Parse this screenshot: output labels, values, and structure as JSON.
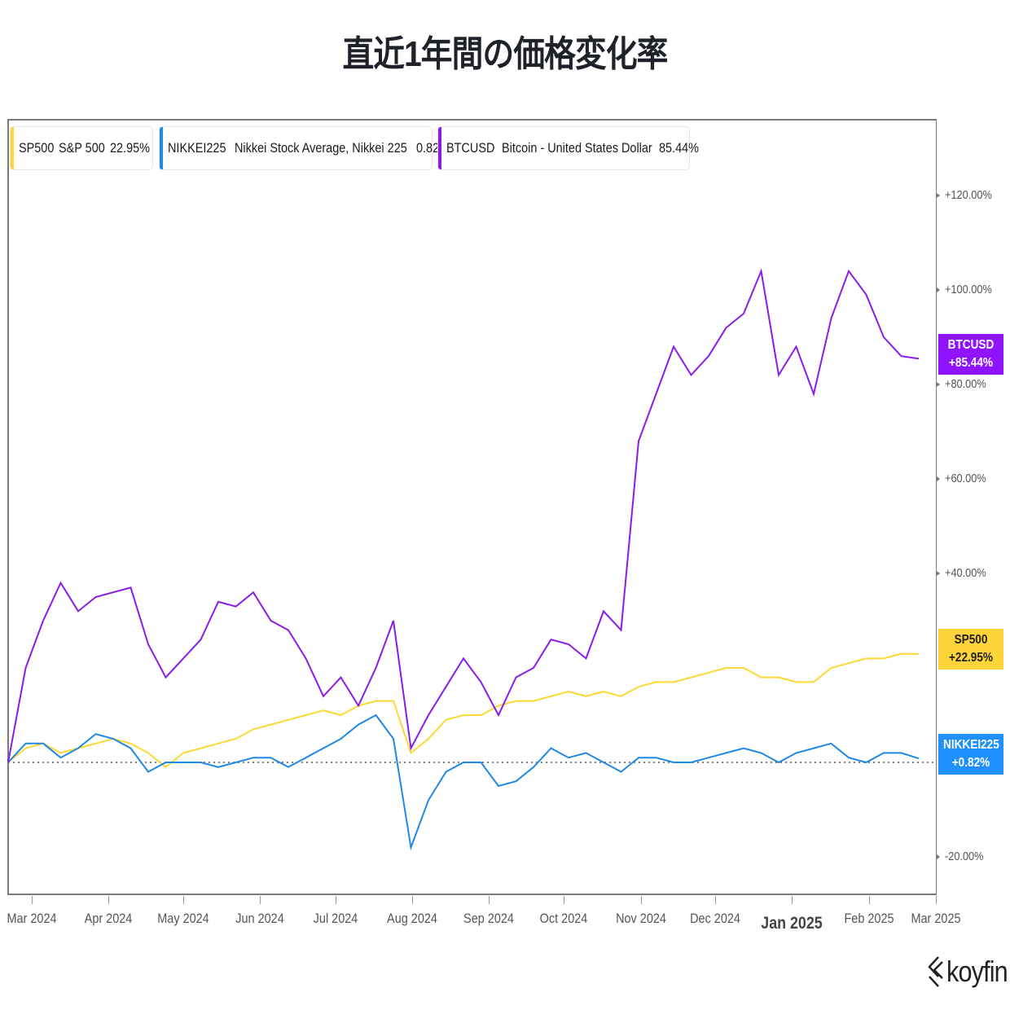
{
  "title": "直近1年間の価格変化率",
  "legend": [
    {
      "ticker": "SP500",
      "name": "S&P 500",
      "change": "22.95%",
      "color": "#fdd835"
    },
    {
      "ticker": "NIKKEI225",
      "name": "Nikkei Stock Average, Nikkei 225",
      "change": "0.82%",
      "color": "#1e88e5"
    },
    {
      "ticker": "BTCUSD",
      "name": "Bitcoin - United States Dollar",
      "change": "85.44%",
      "color": "#8a1be8"
    }
  ],
  "badges": {
    "btc": {
      "ticker": "BTCUSD",
      "value": "+85.44%",
      "bg": "#9013fe",
      "fg": "#ffffff"
    },
    "sp500": {
      "ticker": "SP500",
      "value": "+22.95%",
      "bg": "#fdd53a",
      "fg": "#222222"
    },
    "nikkei": {
      "ticker": "NIKKEI225",
      "value": "+0.82%",
      "bg": "#1e90ff",
      "fg": "#ffffff"
    }
  },
  "y_axis": {
    "ticks": [
      "+120.00%",
      "+100.00%",
      "+80.00%",
      "+60.00%",
      "+40.00%",
      "-20.00%"
    ]
  },
  "x_axis": {
    "ticks": [
      "Mar 2024",
      "Apr 2024",
      "May 2024",
      "Jun 2024",
      "Jul 2024",
      "Aug 2024",
      "Sep 2024",
      "Oct 2024",
      "Nov 2024",
      "Dec 2024",
      "Jan 2025",
      "Feb 2025",
      "Mar 2025"
    ]
  },
  "logo": "koyfin",
  "chart_data": {
    "type": "line",
    "title": "直近1年間の価格変化率",
    "xlabel": "",
    "ylabel": "",
    "ylim": [
      -28,
      138
    ],
    "grid": false,
    "legend_position": "top-left",
    "baseline": 0,
    "x": [
      "2024-02-26",
      "2024-03-04",
      "2024-03-11",
      "2024-03-18",
      "2024-03-25",
      "2024-04-01",
      "2024-04-08",
      "2024-04-15",
      "2024-04-22",
      "2024-04-29",
      "2024-05-06",
      "2024-05-13",
      "2024-05-20",
      "2024-05-27",
      "2024-06-03",
      "2024-06-10",
      "2024-06-17",
      "2024-06-24",
      "2024-07-01",
      "2024-07-08",
      "2024-07-15",
      "2024-07-22",
      "2024-07-29",
      "2024-08-05",
      "2024-08-12",
      "2024-08-19",
      "2024-08-26",
      "2024-09-02",
      "2024-09-09",
      "2024-09-16",
      "2024-09-23",
      "2024-09-30",
      "2024-10-07",
      "2024-10-14",
      "2024-10-21",
      "2024-10-28",
      "2024-11-04",
      "2024-11-11",
      "2024-11-18",
      "2024-11-25",
      "2024-12-02",
      "2024-12-09",
      "2024-12-16",
      "2024-12-23",
      "2024-12-30",
      "2025-01-06",
      "2025-01-13",
      "2025-01-20",
      "2025-01-27",
      "2025-02-03",
      "2025-02-10",
      "2025-02-17",
      "2025-02-24"
    ],
    "series": [
      {
        "name": "SP500",
        "color": "#fdd835",
        "final": 22.95,
        "values": [
          0,
          3,
          4,
          2,
          3,
          4,
          5,
          4,
          2,
          -1,
          2,
          3,
          4,
          5,
          7,
          8,
          9,
          10,
          11,
          10,
          12,
          13,
          13,
          2,
          5,
          9,
          10,
          10,
          12,
          13,
          13,
          14,
          15,
          14,
          15,
          14,
          16,
          17,
          17,
          18,
          19,
          20,
          20,
          18,
          18,
          17,
          17,
          20,
          21,
          22,
          22,
          23,
          22.95
        ]
      },
      {
        "name": "NIKKEI225",
        "color": "#1e88e5",
        "final": 0.82,
        "values": [
          0,
          4,
          4,
          1,
          3,
          6,
          5,
          3,
          -2,
          0,
          0,
          0,
          -1,
          0,
          1,
          1,
          -1,
          1,
          3,
          5,
          8,
          10,
          5,
          -18,
          -8,
          -2,
          0,
          0,
          -5,
          -4,
          -1,
          3,
          1,
          2,
          0,
          -2,
          1,
          1,
          0,
          0,
          1,
          2,
          3,
          2,
          0,
          2,
          3,
          4,
          1,
          0,
          2,
          2,
          0.82
        ]
      },
      {
        "name": "BTCUSD",
        "color": "#8a1be8",
        "final": 85.44,
        "values": [
          0,
          20,
          30,
          38,
          32,
          35,
          36,
          37,
          25,
          18,
          22,
          26,
          34,
          33,
          36,
          30,
          28,
          22,
          14,
          18,
          12,
          20,
          30,
          3,
          10,
          16,
          22,
          17,
          10,
          18,
          20,
          26,
          25,
          22,
          32,
          28,
          68,
          78,
          88,
          82,
          86,
          92,
          95,
          104,
          82,
          88,
          78,
          94,
          104,
          99,
          90,
          86,
          85.44
        ]
      }
    ]
  }
}
